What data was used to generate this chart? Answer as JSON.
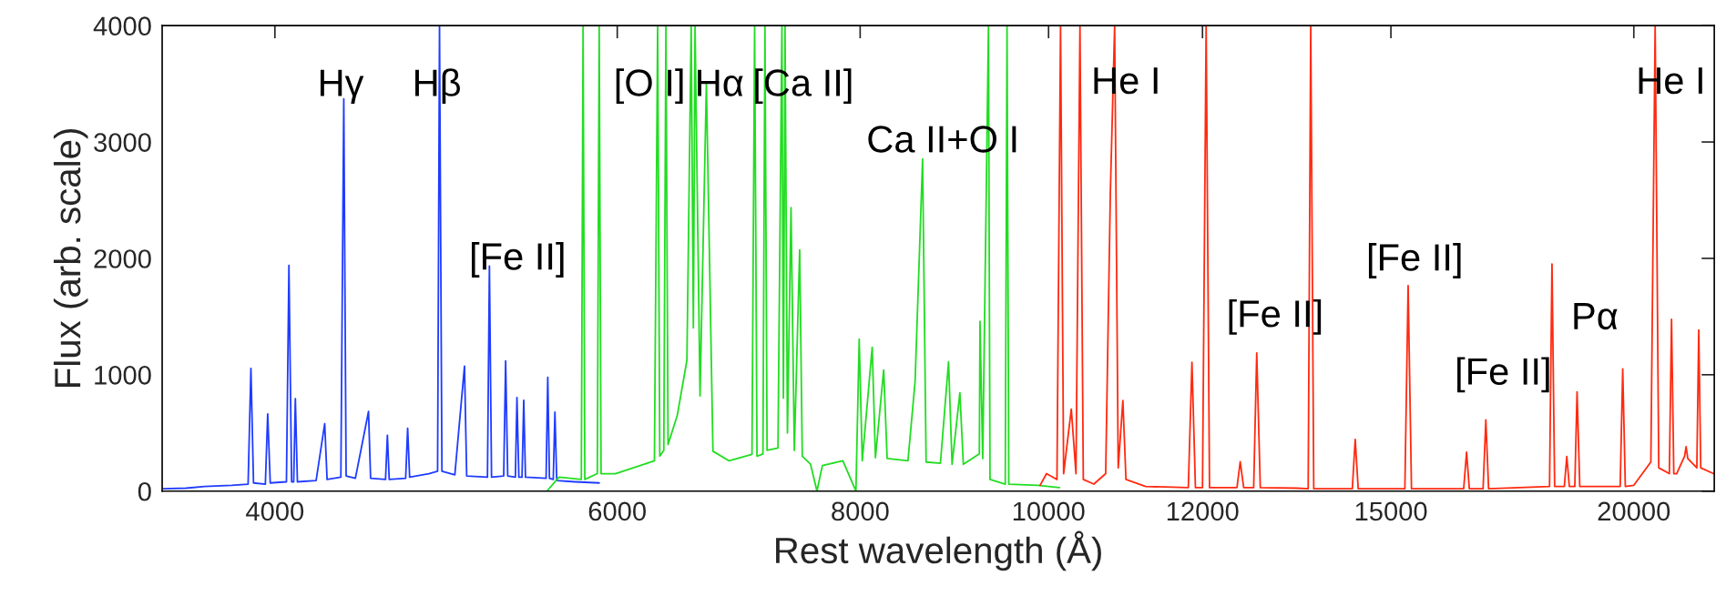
{
  "chart_data": {
    "type": "line",
    "xlabel": "Rest wavelength (Å)",
    "ylabel": "Flux (arb. scale)",
    "log": "x",
    "xlim": [
      3500,
      22000
    ],
    "xticks": [
      4000,
      6000,
      8000,
      10000,
      12000,
      15000,
      20000
    ],
    "ylim": [
      0,
      4000
    ],
    "yticks": [
      0,
      1000,
      2000,
      3000,
      4000
    ],
    "grid": false,
    "legend": false,
    "series": [
      {
        "color": "#1f3cff",
        "x": [
          3505,
          3600,
          3680,
          3800,
          3875,
          3888,
          3900,
          3955,
          3966,
          3978,
          4055,
          4067,
          4080,
          4090,
          4098,
          4108,
          4200,
          4243,
          4255,
          4325,
          4340,
          4352,
          4400,
          4469,
          4480,
          4560,
          4570,
          4580,
          4670,
          4681,
          4692,
          4800,
          4850,
          4861,
          4875,
          4950,
          5007,
          5020,
          5145,
          5157,
          5170,
          5245,
          5257,
          5270,
          5318,
          5328,
          5340,
          5360,
          5371,
          5382,
          5515,
          5526,
          5537,
          5562,
          5573,
          5585,
          5705,
          5873
        ],
        "values": [
          20,
          25,
          40,
          50,
          60,
          1055,
          70,
          60,
          664,
          70,
          80,
          1940,
          80,
          80,
          795,
          80,
          90,
          580,
          100,
          120,
          3370,
          130,
          110,
          684,
          110,
          100,
          480,
          100,
          110,
          540,
          120,
          150,
          170,
          4000,
          170,
          140,
          1074,
          130,
          120,
          1934,
          120,
          130,
          1119,
          130,
          120,
          804,
          120,
          120,
          781,
          120,
          110,
          977,
          110,
          100,
          678,
          90,
          80,
          70
        ]
      },
      {
        "color": "#22dd22",
        "x": [
          5520,
          5600,
          5750,
          5762,
          5774,
          5860,
          5873,
          5886,
          5987,
          6270,
          6294,
          6310,
          6340,
          6356,
          6372,
          6442,
          6516,
          6549,
          6566,
          6579,
          6618,
          6668,
          6720,
          6850,
          7038,
          7060,
          7080,
          7130,
          7147,
          7165,
          7258,
          7292,
          7305,
          7319,
          7340,
          7371,
          7400,
          7447,
          7470,
          7543,
          7601,
          7650,
          7838,
          7960,
          7991,
          8020,
          8115,
          8146,
          8226,
          8260,
          8466,
          8538,
          8614,
          8650,
          8798,
          8883,
          8920,
          9003,
          9040,
          9213,
          9220,
          9250,
          9313,
          9330,
          9500,
          9520,
          9540,
          9873,
          10131
        ],
        "values": [
          0,
          120,
          100,
          4000,
          100,
          150,
          4000,
          150,
          150,
          260,
          4000,
          300,
          350,
          4000,
          400,
          650,
          1124,
          4000,
          1403,
          4000,
          818,
          3500,
          343,
          260,
          315,
          4000,
          300,
          320,
          4000,
          350,
          371,
          4000,
          800,
          4000,
          500,
          2436,
          350,
          2073,
          300,
          232,
          0,
          220,
          260,
          0,
          1306,
          260,
          1236,
          287,
          1041,
          280,
          260,
          943,
          2854,
          250,
          240,
          1110,
          230,
          845,
          230,
          320,
          1459,
          280,
          4000,
          100,
          60,
          4000,
          60,
          50,
          30
        ]
      },
      {
        "color": "#ff2a10",
        "x": [
          9900,
          9976,
          10100,
          10143,
          10180,
          10273,
          10330,
          10379,
          10420,
          10551,
          10700,
          10759,
          10814,
          10860,
          10920,
          10960,
          11218,
          11800,
          11851,
          11900,
          12000,
          12052,
          12100,
          12500,
          12548,
          12600,
          12750,
          12796,
          12850,
          13420,
          13600,
          13641,
          13690,
          14330,
          14379,
          14430,
          15250,
          15309,
          15370,
          16350,
          16406,
          16460,
          16730,
          16785,
          16840,
          18100,
          18153,
          18210,
          18420,
          18474,
          18530,
          18650,
          18700,
          18760,
          19680,
          19739,
          19800,
          20000,
          20408,
          20512,
          20600,
          20860,
          20914,
          20970,
          21041,
          21240,
          21278,
          21320,
          21550,
          21599,
          21650,
          21980
        ],
        "values": [
          50,
          150,
          100,
          4000,
          150,
          705,
          150,
          4000,
          100,
          60,
          150,
          2553,
          4000,
          200,
          779,
          100,
          40,
          30,
          1106,
          30,
          30,
          4000,
          30,
          30,
          252,
          30,
          30,
          1187,
          30,
          25,
          20,
          4000,
          20,
          20,
          445,
          20,
          20,
          1766,
          20,
          20,
          334,
          20,
          20,
          612,
          20,
          40,
          1952,
          40,
          40,
          297,
          40,
          40,
          853,
          40,
          40,
          1050,
          40,
          50,
          250,
          4000,
          200,
          150,
          1477,
          150,
          150,
          300,
          382,
          280,
          200,
          1384,
          200,
          150
        ]
      }
    ],
    "annotations": [
      "Hγ",
      "Hβ",
      "[Fe II]",
      "[O I]",
      "Hα",
      "[Ca II]",
      "Ca II+O I",
      "He I",
      "[Fe II]",
      "[Fe II]",
      "[Fe II]",
      "Pα",
      "He I"
    ]
  }
}
